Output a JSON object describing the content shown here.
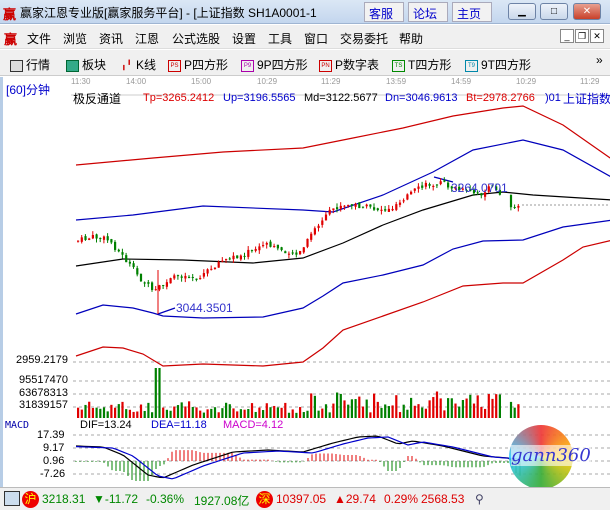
{
  "window": {
    "title": "赢家江恩专业版[赢家服务平台] - [上证指数  SH1A0001-1",
    "links": [
      "客服",
      "论坛",
      "主页"
    ],
    "logo": "赢"
  },
  "menu": [
    "文件",
    "浏览",
    "资讯",
    "江恩",
    "公式选股",
    "设置",
    "工具",
    "窗口",
    "交易委托",
    "帮助"
  ],
  "toolbar": [
    {
      "label": "行情",
      "icon": "table-icon"
    },
    {
      "label": "板块",
      "icon": "blocks-icon"
    },
    {
      "label": "K线",
      "icon": "candle-icon"
    },
    {
      "label": "P四方形",
      "icon": "PS"
    },
    {
      "label": "9P四方形",
      "icon": "P9"
    },
    {
      "label": "P数字表",
      "icon": "PN"
    },
    {
      "label": "T四方形",
      "icon": "TS"
    },
    {
      "label": "9T四方形",
      "icon": "T9"
    }
  ],
  "chart": {
    "period": "[60]分钟",
    "time_labels": [
      "11:30",
      "14:00",
      "15:00",
      "10:29",
      "11:29",
      "13:59",
      "14:59",
      "10:29",
      "11:29"
    ],
    "indicator": "极反通道",
    "tp": "Tp=3265.2412",
    "up": "Up=3196.5565",
    "md": "Md=3122.5677",
    "dn": "Dn=3046.9613",
    "bt": "Bt=2978.2766",
    "symbol_code": ")01",
    "symbol_name": "上证指数",
    "high_label": "3264.0701",
    "low_label": "3044.3501",
    "price_axis_label": "2959.2179",
    "volume_axis": [
      "95517470",
      "63678313",
      "31839157"
    ],
    "macd": {
      "name": "MACD",
      "dif": "DIF=13.24",
      "dea": "DEA=11.18",
      "macd": "MACD=4.12",
      "axis": [
        "17.39",
        "9.17",
        "0.96",
        "-7.26"
      ]
    },
    "colors": {
      "up": "#e00000",
      "down": "#008000",
      "band_outer": "#cc0000",
      "band_inner": "#0000bb",
      "mid": "#000000"
    },
    "watermark": "gann360"
  },
  "status": {
    "sh_badge": "沪",
    "sh": "3218.31",
    "sh_chg": "▼-11.72",
    "sh_pct": "-0.36%",
    "sh_amt": "1927.08亿",
    "sz_badge": "深",
    "sz": "10397.05",
    "sz_chg": "▲29.74",
    "sz_pct": "0.29%",
    "sz_amt": "2568.53"
  }
}
